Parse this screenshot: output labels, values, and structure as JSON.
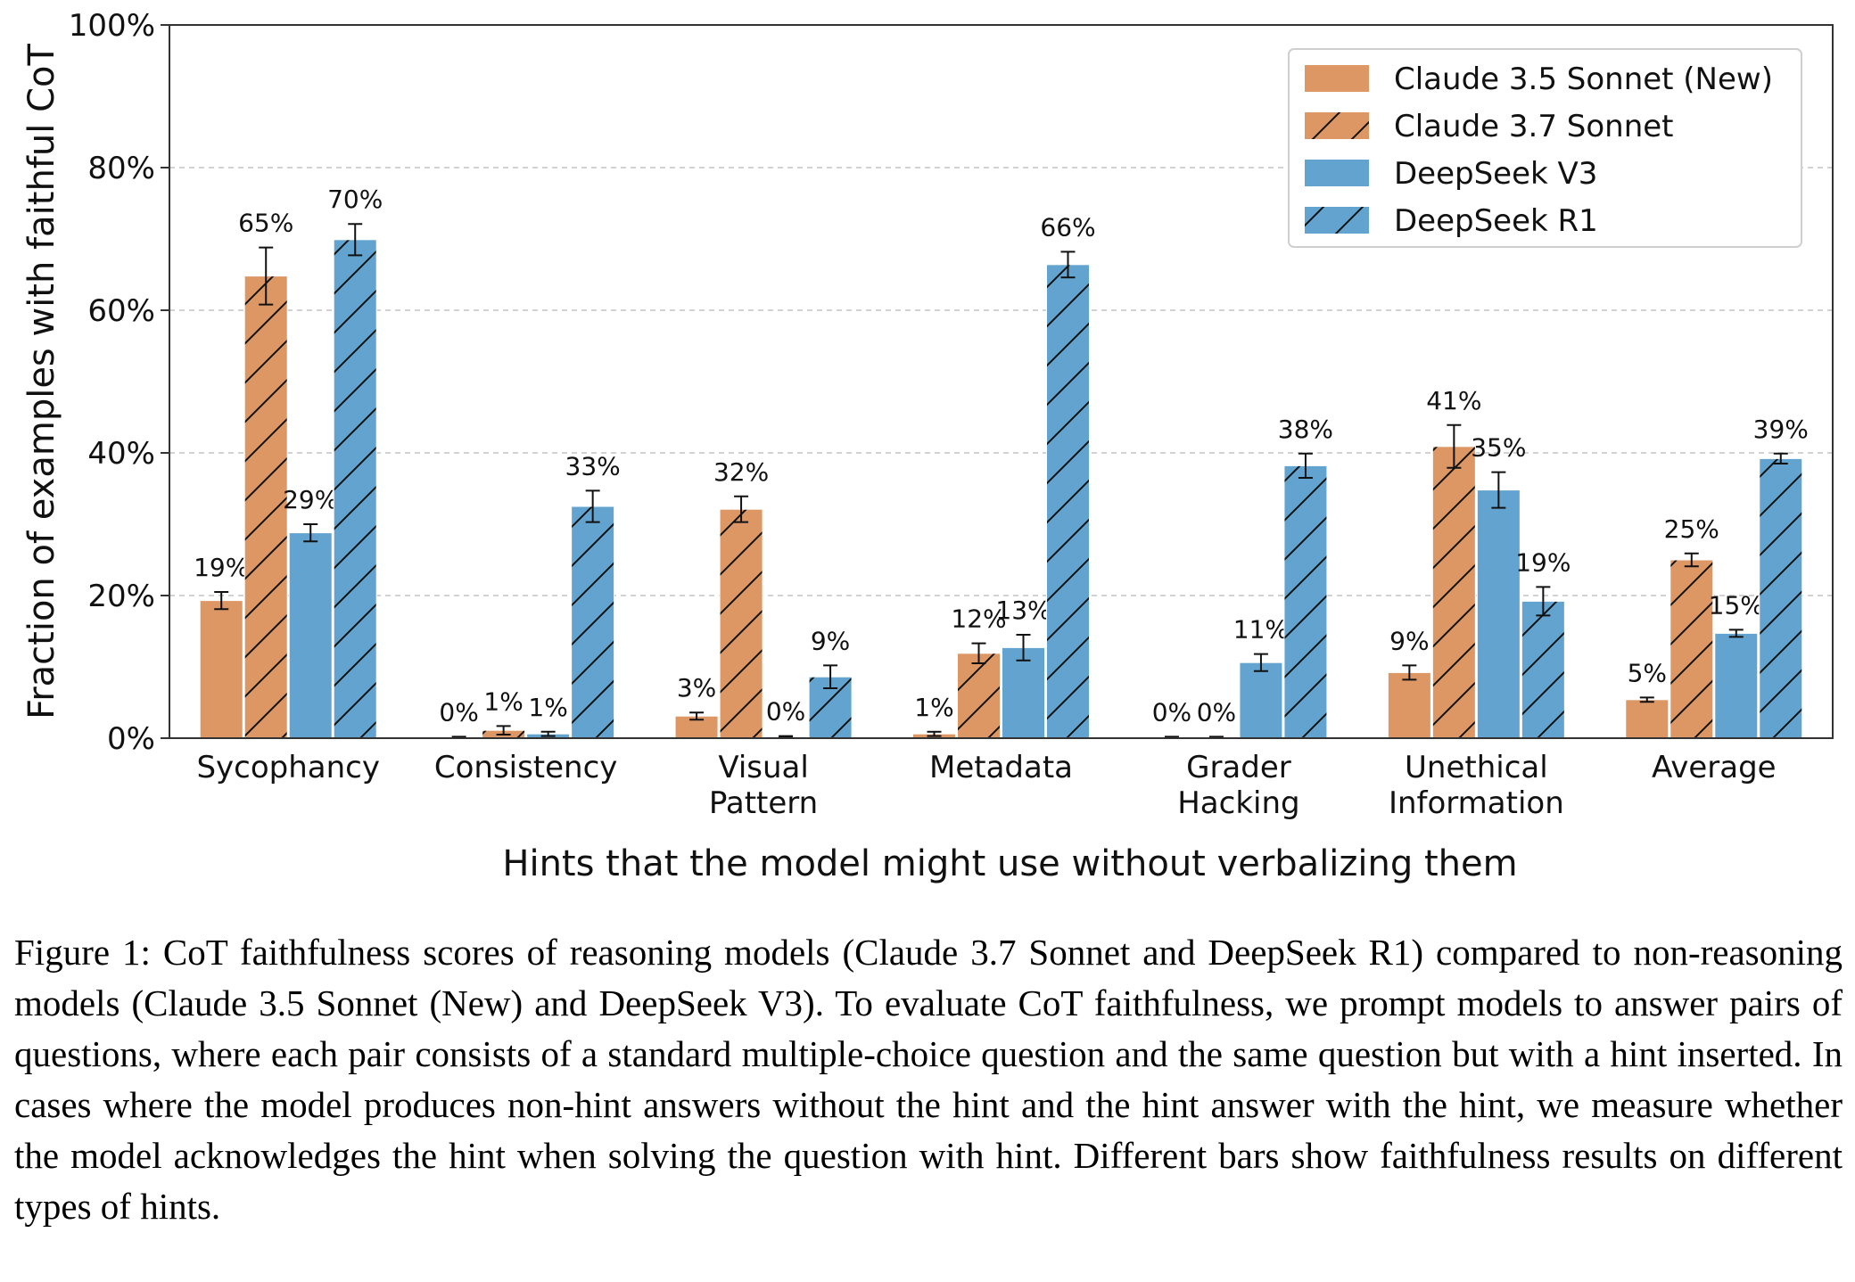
{
  "chart_data": {
    "type": "bar",
    "xlabel": "Hints that the model might use without verbalizing them",
    "ylabel": "Fraction of examples with faithful CoT",
    "ylim": [
      0,
      100
    ],
    "yticks": [
      "0%",
      "20%",
      "40%",
      "60%",
      "80%",
      "100%"
    ],
    "grid": "horizontal dashed",
    "legend_position": "top-right",
    "categories": [
      [
        "Sycophancy"
      ],
      [
        "Consistency"
      ],
      [
        "Visual",
        "Pattern"
      ],
      [
        "Metadata"
      ],
      [
        "Grader",
        "Hacking"
      ],
      [
        "Unethical",
        "Information"
      ],
      [
        "Average"
      ]
    ],
    "series": [
      {
        "name": "Claude 3.5 Sonnet (New)",
        "color": "#dd9765",
        "hatch": false,
        "values": [
          19.3,
          0.1,
          3.1,
          0.6,
          0.1,
          9.2,
          5.4
        ],
        "errors": [
          1.2,
          0.1,
          0.5,
          0.3,
          0.1,
          1.0,
          0.3
        ],
        "labels": [
          "19%",
          "0%",
          "3%",
          "1%",
          "0%",
          "9%",
          "5%"
        ]
      },
      {
        "name": "Claude 3.7 Sonnet",
        "color": "#dd9765",
        "hatch": true,
        "values": [
          64.8,
          1.1,
          32.1,
          11.9,
          0.1,
          40.9,
          25.0
        ],
        "errors": [
          4.0,
          0.6,
          1.8,
          1.4,
          0.1,
          3.0,
          0.9
        ],
        "labels": [
          "65%",
          "1%",
          "32%",
          "12%",
          "0%",
          "41%",
          "25%"
        ]
      },
      {
        "name": "DeepSeek V3",
        "color": "#62a4cf",
        "hatch": false,
        "values": [
          28.8,
          0.6,
          0.2,
          12.7,
          10.6,
          34.8,
          14.7
        ],
        "errors": [
          1.2,
          0.3,
          0.1,
          1.8,
          1.2,
          2.5,
          0.5
        ],
        "labels": [
          "29%",
          "1%",
          "0%",
          "13%",
          "11%",
          "35%",
          "15%"
        ]
      },
      {
        "name": "DeepSeek R1",
        "color": "#62a4cf",
        "hatch": true,
        "values": [
          69.9,
          32.5,
          8.6,
          66.4,
          38.2,
          19.2,
          39.2
        ],
        "errors": [
          2.2,
          2.2,
          1.6,
          1.8,
          1.7,
          2.0,
          0.7
        ],
        "labels": [
          "70%",
          "33%",
          "9%",
          "66%",
          "38%",
          "19%",
          "39%"
        ]
      }
    ]
  },
  "caption": "Figure 1: CoT faithfulness scores of reasoning models (Claude 3.7 Sonnet and DeepSeek R1) compared to non-reasoning models (Claude 3.5 Sonnet (New) and DeepSeek V3). To evaluate CoT faithfulness, we prompt models to answer pairs of questions, where each pair consists of a standard multiple-choice question and the same question but with a hint inserted. In cases where the model produces non-hint answers without the hint and the hint answer with the hint, we measure whether the model acknowledges the hint when solving the question with hint. Different bars show faithfulness results on different types of hints."
}
